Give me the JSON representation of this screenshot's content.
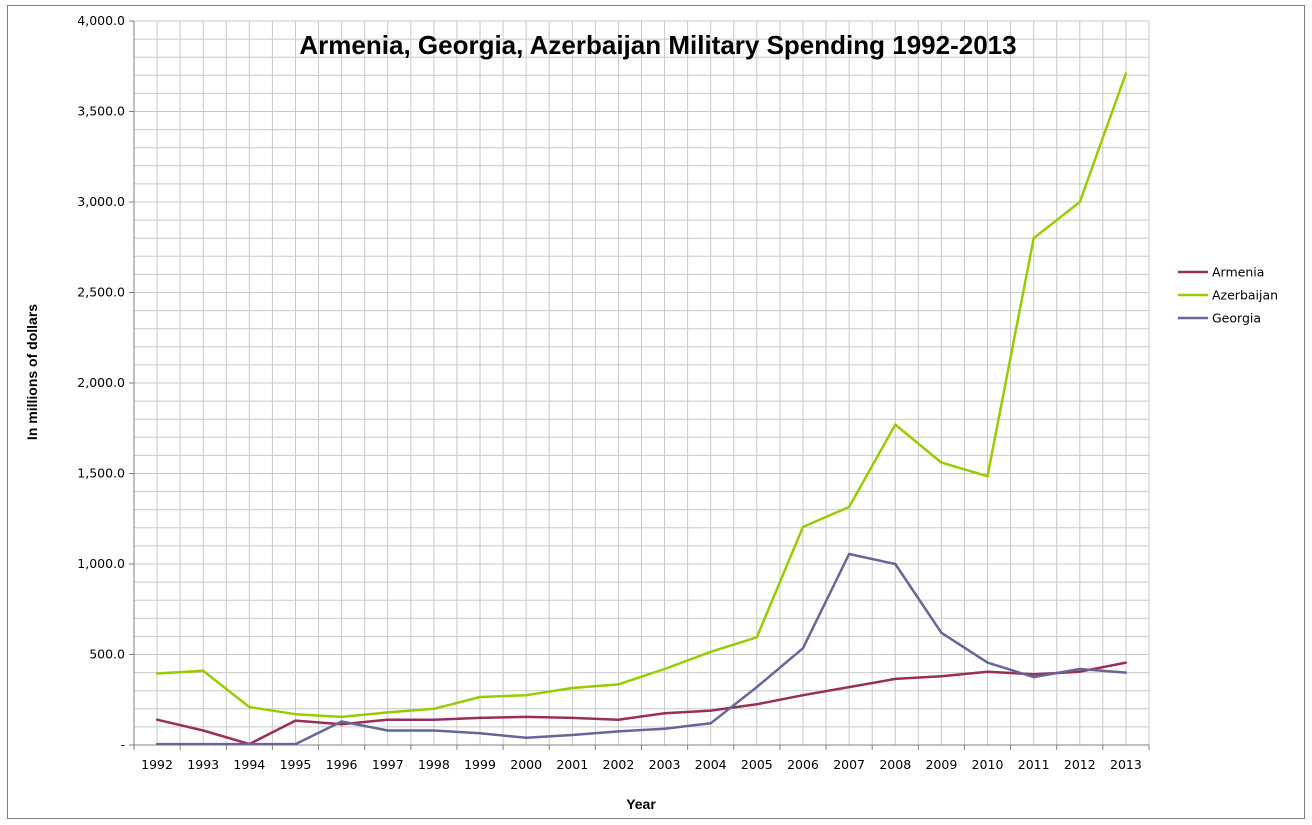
{
  "chart_data": {
    "type": "line",
    "title": "Armenia, Georgia, Azerbaijan Military Spending 1992-2013",
    "xlabel": "Year",
    "ylabel": "In millions of dollars",
    "x": [
      "1992",
      "1993",
      "1994",
      "1995",
      "1996",
      "1997",
      "1998",
      "1999",
      "2000",
      "2001",
      "2002",
      "2003",
      "2004",
      "2005",
      "2006",
      "2007",
      "2008",
      "2009",
      "2010",
      "2011",
      "2012",
      "2013"
    ],
    "ylim": [
      0,
      4000
    ],
    "y_ticks": [
      0,
      500,
      1000,
      1500,
      2000,
      2500,
      3000,
      3500,
      4000
    ],
    "y_tick_labels": [
      "-",
      "500.0",
      "1,000.0",
      "1,500.0",
      "2,000.0",
      "2,500.0",
      "3,000.0",
      "3,500.0",
      "4,000.0"
    ],
    "grid": true,
    "legend_position": "right",
    "series": [
      {
        "name": "Armenia",
        "color": "#9b2d5a",
        "values": [
          140,
          80,
          5,
          135,
          115,
          140,
          140,
          150,
          155,
          150,
          140,
          175,
          190,
          225,
          275,
          320,
          365,
          380,
          405,
          390,
          405,
          455
        ]
      },
      {
        "name": "Azerbaijan",
        "color": "#99cc00",
        "values": [
          395,
          410,
          210,
          170,
          155,
          180,
          200,
          265,
          275,
          315,
          335,
          420,
          515,
          595,
          1205,
          1315,
          1770,
          1560,
          1485,
          2800,
          3000,
          3710
        ]
      },
      {
        "name": "Georgia",
        "color": "#666699",
        "values": [
          5,
          5,
          5,
          5,
          130,
          80,
          80,
          65,
          40,
          55,
          75,
          90,
          120,
          320,
          535,
          1055,
          1000,
          620,
          455,
          375,
          420,
          400
        ]
      }
    ]
  }
}
